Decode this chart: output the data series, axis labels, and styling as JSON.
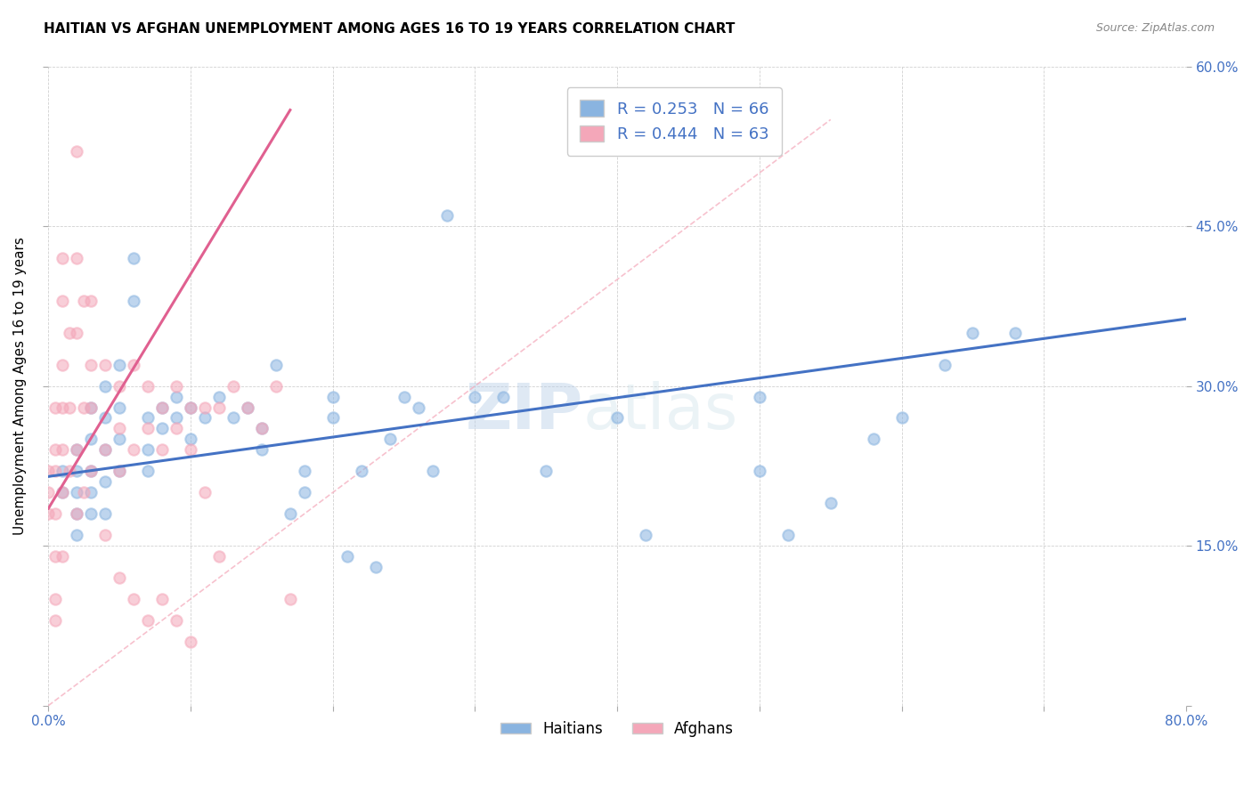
{
  "title": "HAITIAN VS AFGHAN UNEMPLOYMENT AMONG AGES 16 TO 19 YEARS CORRELATION CHART",
  "source": "Source: ZipAtlas.com",
  "ylabel": "Unemployment Among Ages 16 to 19 years",
  "xlim": [
    0.0,
    0.8
  ],
  "ylim": [
    0.0,
    0.6
  ],
  "xticks": [
    0.0,
    0.1,
    0.2,
    0.3,
    0.4,
    0.5,
    0.6,
    0.7,
    0.8
  ],
  "yticks": [
    0.0,
    0.15,
    0.3,
    0.45,
    0.6
  ],
  "haitian_color": "#8ab4e0",
  "afghan_color": "#f4a7b9",
  "haitian_line_color": "#4472c4",
  "afghan_line_color": "#e06090",
  "diag_color": "#f4a7b9",
  "R_haitian": 0.253,
  "N_haitian": 66,
  "R_afghan": 0.444,
  "N_afghan": 63,
  "haitian_intercept": 0.215,
  "haitian_slope": 0.185,
  "afghan_intercept": 0.185,
  "afghan_slope": 2.2,
  "watermark": "ZIPatlas",
  "legend_R_label1": "R = 0.253   N = 66",
  "legend_R_label2": "R = 0.444   N = 63",
  "legend_label1": "Haitians",
  "legend_label2": "Afghans",
  "haitian_x": [
    0.01,
    0.01,
    0.02,
    0.02,
    0.02,
    0.02,
    0.02,
    0.03,
    0.03,
    0.03,
    0.03,
    0.03,
    0.04,
    0.04,
    0.04,
    0.04,
    0.04,
    0.05,
    0.05,
    0.05,
    0.05,
    0.06,
    0.06,
    0.07,
    0.07,
    0.07,
    0.08,
    0.08,
    0.09,
    0.09,
    0.1,
    0.1,
    0.11,
    0.12,
    0.13,
    0.14,
    0.15,
    0.15,
    0.16,
    0.17,
    0.18,
    0.18,
    0.2,
    0.2,
    0.21,
    0.22,
    0.23,
    0.24,
    0.25,
    0.26,
    0.27,
    0.28,
    0.3,
    0.32,
    0.35,
    0.4,
    0.42,
    0.5,
    0.52,
    0.58,
    0.6,
    0.65,
    0.68,
    0.5,
    0.55,
    0.63
  ],
  "haitian_y": [
    0.22,
    0.2,
    0.24,
    0.22,
    0.2,
    0.18,
    0.16,
    0.28,
    0.25,
    0.22,
    0.2,
    0.18,
    0.3,
    0.27,
    0.24,
    0.21,
    0.18,
    0.32,
    0.28,
    0.25,
    0.22,
    0.42,
    0.38,
    0.27,
    0.24,
    0.22,
    0.28,
    0.26,
    0.29,
    0.27,
    0.28,
    0.25,
    0.27,
    0.29,
    0.27,
    0.28,
    0.26,
    0.24,
    0.32,
    0.18,
    0.22,
    0.2,
    0.29,
    0.27,
    0.14,
    0.22,
    0.13,
    0.25,
    0.29,
    0.28,
    0.22,
    0.46,
    0.29,
    0.29,
    0.22,
    0.27,
    0.16,
    0.29,
    0.16,
    0.25,
    0.27,
    0.35,
    0.35,
    0.22,
    0.19,
    0.32
  ],
  "afghan_x": [
    0.0,
    0.0,
    0.0,
    0.005,
    0.005,
    0.005,
    0.005,
    0.005,
    0.005,
    0.005,
    0.01,
    0.01,
    0.01,
    0.01,
    0.01,
    0.01,
    0.01,
    0.015,
    0.015,
    0.015,
    0.02,
    0.02,
    0.02,
    0.02,
    0.02,
    0.025,
    0.025,
    0.025,
    0.03,
    0.03,
    0.03,
    0.03,
    0.04,
    0.04,
    0.04,
    0.05,
    0.05,
    0.05,
    0.06,
    0.06,
    0.07,
    0.07,
    0.08,
    0.08,
    0.09,
    0.09,
    0.1,
    0.1,
    0.11,
    0.12,
    0.13,
    0.14,
    0.15,
    0.16,
    0.17,
    0.11,
    0.12,
    0.07,
    0.05,
    0.08,
    0.09,
    0.1,
    0.06
  ],
  "afghan_y": [
    0.22,
    0.2,
    0.18,
    0.28,
    0.24,
    0.22,
    0.18,
    0.14,
    0.1,
    0.08,
    0.42,
    0.38,
    0.32,
    0.28,
    0.24,
    0.2,
    0.14,
    0.35,
    0.28,
    0.22,
    0.52,
    0.42,
    0.35,
    0.24,
    0.18,
    0.38,
    0.28,
    0.2,
    0.38,
    0.32,
    0.28,
    0.22,
    0.32,
    0.24,
    0.16,
    0.3,
    0.26,
    0.22,
    0.32,
    0.24,
    0.3,
    0.26,
    0.28,
    0.24,
    0.3,
    0.26,
    0.28,
    0.24,
    0.28,
    0.28,
    0.3,
    0.28,
    0.26,
    0.3,
    0.1,
    0.2,
    0.14,
    0.08,
    0.12,
    0.1,
    0.08,
    0.06,
    0.1
  ]
}
